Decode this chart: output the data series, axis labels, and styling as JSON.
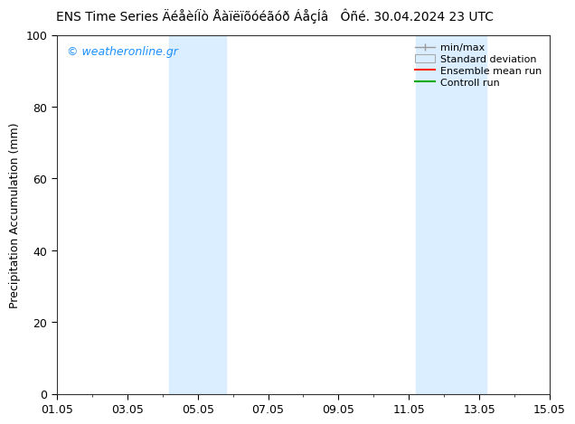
{
  "title_text": "ENS Time Series ÄéåèíÏò Åàïëïõóéãóð ÁåçÍâ",
  "date_text": "Ôñé. 30.04.2024 23 UTC",
  "ylabel": "Precipitation Accumulation (mm)",
  "ylim": [
    0,
    100
  ],
  "yticks": [
    0,
    20,
    40,
    60,
    80,
    100
  ],
  "xlim_start": 0,
  "xlim_end": 14,
  "xtick_labels": [
    "01.05",
    "03.05",
    "05.05",
    "07.05",
    "09.05",
    "11.05",
    "13.05",
    "15.05"
  ],
  "xtick_positions": [
    0,
    2,
    4,
    6,
    8,
    10,
    12,
    14
  ],
  "shaded_bands": [
    {
      "x_start": 3.2,
      "x_end": 4.8,
      "color": "#daeeff"
    },
    {
      "x_start": 10.2,
      "x_end": 12.2,
      "color": "#daeeff"
    }
  ],
  "watermark": "© weatheronline.gr",
  "watermark_color": "#1e90ff",
  "legend_labels": [
    "min/max",
    "Standard deviation",
    "Ensemble mean run",
    "Controll run"
  ],
  "background_color": "#ffffff",
  "title_fontsize": 10,
  "axis_label_fontsize": 9,
  "tick_labelsize": 9
}
